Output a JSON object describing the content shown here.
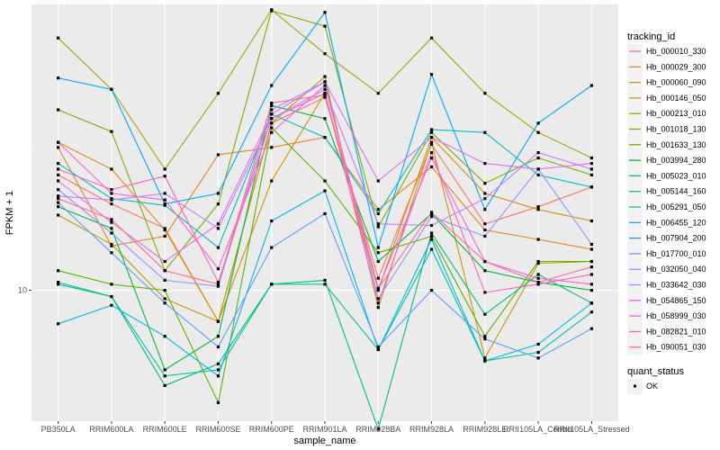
{
  "chart_data": {
    "type": "line",
    "title": "",
    "xlabel": "sample_name",
    "ylabel": "FPKM + 1",
    "y_scale": "log10",
    "ylim": [
      5.3,
      40
    ],
    "y_ticks": [
      {
        "value": 10,
        "label": "10"
      }
    ],
    "grid": true,
    "categories": [
      "PB350LA",
      "RRIM600LA",
      "RRIM600LE",
      "RRIM600SE",
      "RRIM600PE",
      "RRIM901LA",
      "RRIM928BA",
      "RRIM928LA",
      "RRIM928LE",
      "RRII105LA_Control",
      "RRII105LA_Stressed"
    ],
    "legend": {
      "placement": "right",
      "color_title": "tracking_id",
      "shape_title": "quant_status",
      "shape_entries": [
        "OK"
      ]
    },
    "series": [
      {
        "name": "Hb_000010_330",
        "color": "#F8766D",
        "values": [
          17.5,
          15.2,
          13.5,
          8.6,
          22.5,
          25.5,
          10.6,
          20.3,
          13.8,
          15.0,
          16.5
        ]
      },
      {
        "name": "Hb_000029_300",
        "color": "#E7851E",
        "values": [
          20.0,
          12.4,
          13.0,
          19.3,
          20.0,
          21.0,
          14.8,
          18.2,
          13.4,
          12.8,
          12.2
        ]
      },
      {
        "name": "Hb_000060_090",
        "color": "#D89000",
        "values": [
          20.5,
          18.0,
          13.4,
          8.6,
          17.0,
          26.0,
          10.0,
          21.0,
          16.0,
          14.8,
          14.0
        ]
      },
      {
        "name": "Hb_000146_050",
        "color": "#C49A00",
        "values": [
          14.4,
          12.5,
          9.6,
          8.6,
          22.5,
          28.2,
          9.2,
          20.5,
          7.2,
          11.4,
          11.5
        ]
      },
      {
        "name": "Hb_000213_010",
        "color": "#A3A500",
        "values": [
          34.0,
          26.5,
          18.0,
          26.0,
          39.0,
          31.5,
          26.0,
          34.0,
          26.0,
          21.5,
          19.0
        ]
      },
      {
        "name": "Hb_001018_130",
        "color": "#7CAE00",
        "values": [
          24.0,
          21.6,
          11.0,
          15.2,
          38.8,
          36.0,
          13.6,
          21.5,
          16.8,
          19.0,
          17.5
        ]
      },
      {
        "name": "Hb_001633_130",
        "color": "#5BB300",
        "values": [
          11.0,
          10.3,
          10.0,
          5.8,
          22.0,
          17.0,
          12.0,
          13.0,
          8.0,
          11.5,
          11.5
        ]
      },
      {
        "name": "Hb_003994_280",
        "color": "#00BA38",
        "values": [
          15.0,
          13.5,
          6.8,
          8.0,
          24.5,
          23.0,
          11.5,
          14.5,
          11.0,
          10.4,
          10.0
        ]
      },
      {
        "name": "Hb_005023_010",
        "color": "#00BF7D",
        "values": [
          10.3,
          9.7,
          6.3,
          7.0,
          10.3,
          10.5,
          5.1,
          13.2,
          8.9,
          10.8,
          9.4
        ]
      },
      {
        "name": "Hb_005144_160",
        "color": "#00C1A3",
        "values": [
          10.4,
          9.7,
          6.6,
          6.8,
          10.3,
          10.3,
          7.5,
          12.2,
          7.1,
          7.4,
          9.0
        ]
      },
      {
        "name": "Hb_005291_050",
        "color": "#00BFC4",
        "values": [
          18.5,
          15.6,
          15.1,
          12.3,
          23.5,
          21.0,
          14.5,
          21.8,
          21.5,
          17.5,
          16.5
        ]
      },
      {
        "name": "Hb_006455_120",
        "color": "#00B9E3",
        "values": [
          8.5,
          9.3,
          8.0,
          6.6,
          14.0,
          16.2,
          7.5,
          12.8,
          7.1,
          7.7,
          9.4
        ]
      },
      {
        "name": "Hb_007904_200",
        "color": "#00A9FF",
        "values": [
          28.0,
          26.5,
          15.2,
          16.0,
          27.0,
          38.5,
          12.3,
          28.5,
          14.8,
          22.5,
          27.0
        ]
      },
      {
        "name": "Hb_017700_010",
        "color": "#619CFF",
        "values": [
          15.3,
          12.0,
          9.4,
          7.6,
          12.3,
          14.5,
          7.6,
          10.0,
          7.9,
          7.2,
          8.3
        ]
      },
      {
        "name": "Hb_032050_040",
        "color": "#9590FF",
        "values": [
          16.3,
          13.2,
          10.5,
          10.2,
          24.0,
          27.5,
          9.6,
          14.3,
          13.0,
          18.0,
          12.5
        ]
      },
      {
        "name": "Hb_033642_030",
        "color": "#C77CFF",
        "values": [
          15.8,
          15.5,
          16.0,
          13.5,
          23.0,
          26.5,
          13.8,
          13.7,
          15.6,
          19.5,
          18.0
        ]
      },
      {
        "name": "Hb_054865_150",
        "color": "#E76BF3",
        "values": [
          17.0,
          13.9,
          11.5,
          13.8,
          23.5,
          27.5,
          17.0,
          21.0,
          18.5,
          18.0,
          18.5
        ]
      },
      {
        "name": "Hb_058999_030",
        "color": "#FA62DB",
        "values": [
          20.5,
          16.0,
          15.5,
          11.1,
          21.5,
          27.0,
          10.1,
          19.0,
          11.5,
          10.6,
          10.3
        ]
      },
      {
        "name": "Hb_082821_010",
        "color": "#FF62BC",
        "values": [
          18.0,
          16.3,
          17.4,
          10.4,
          23.0,
          26.0,
          9.4,
          19.5,
          9.9,
          10.3,
          10.8
        ]
      },
      {
        "name": "Hb_090051_030",
        "color": "#FF6C91",
        "values": [
          15.6,
          14.1,
          11.0,
          10.3,
          24.8,
          25.8,
          10.1,
          14.6,
          11.5,
          10.4,
          11.2
        ]
      }
    ]
  }
}
